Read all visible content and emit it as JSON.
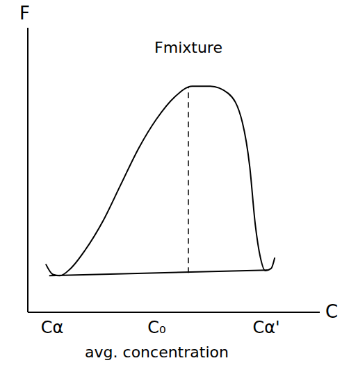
{
  "chart_data": {
    "type": "line",
    "ylabel": "F",
    "xlabel": "C",
    "xlim": [
      0,
      12
    ],
    "ylim": [
      0,
      13
    ],
    "xticks": [
      {
        "value": 1.0,
        "label": "Cα"
      },
      {
        "value": 5.3,
        "label": "C₀"
      },
      {
        "value": 9.8,
        "label": "Cα'"
      }
    ],
    "tick_labels": "x",
    "grid": false,
    "series": [
      {
        "x": [
          0.74,
          1.03,
          1.32,
          1.76,
          2.35,
          3.09,
          3.82,
          4.56,
          5.29,
          6.03,
          6.76,
          7.5,
          8.24,
          8.82,
          9.12,
          9.35,
          9.56,
          9.76,
          10.0,
          10.15
        ],
        "values": [
          2.2,
          1.73,
          1.67,
          2.0,
          2.83,
          4.17,
          5.83,
          7.5,
          8.83,
          9.83,
          10.33,
          10.33,
          10.0,
          8.67,
          6.67,
          4.0,
          2.5,
          1.9,
          2.0,
          2.5
        ],
        "color": "#000000",
        "line_style": "solid"
      },
      {
        "x": [
          0.88,
          9.85
        ],
        "values": [
          1.67,
          1.93
        ],
        "color": "#000000",
        "line_style": "solid"
      }
    ],
    "vlines": [
      {
        "x": 6.6,
        "y": [
          1.8,
          10.3
        ],
        "line_style": "dashed"
      }
    ],
    "annotations": [
      {
        "text": "Fmixture",
        "x": 6.6,
        "y": 12.1
      },
      {
        "text": "avg. concentration",
        "x": 5.3,
        "y": -1.8
      }
    ]
  }
}
